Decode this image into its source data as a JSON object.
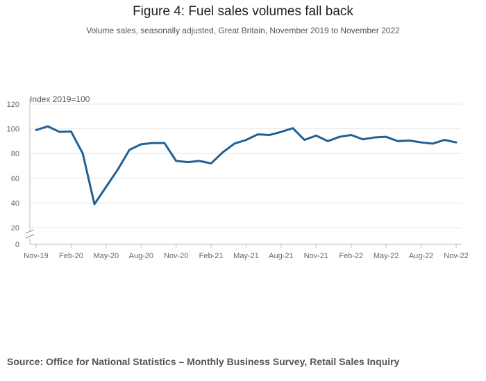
{
  "chart_data": {
    "type": "line",
    "title": "Figure 4: Fuel sales volumes fall back",
    "subtitle": "Volume sales, seasonally adjusted, Great Britain, November 2019 to November 2022",
    "ylabel": "Index 2019=100",
    "xlabel": "",
    "ylim": [
      0,
      120
    ],
    "y_ticks": [
      0,
      20,
      40,
      60,
      80,
      100,
      120
    ],
    "axis_break": true,
    "grid": true,
    "x_tick_labels": [
      "Nov-19",
      "Feb-20",
      "May-20",
      "Aug-20",
      "Nov-20",
      "Feb-21",
      "May-21",
      "Aug-21",
      "Nov-21",
      "Feb-22",
      "May-22",
      "Aug-22",
      "Nov-22"
    ],
    "x_tick_every": 3,
    "series": [
      {
        "name": "Fuel sales volume",
        "color": "#206095",
        "values": [
          99.0,
          102.0,
          97.5,
          97.8,
          80.0,
          39.0,
          53.0,
          67.0,
          83.0,
          87.5,
          88.5,
          88.5,
          74.0,
          73.0,
          74.0,
          72.0,
          81.0,
          88.0,
          91.0,
          95.5,
          95.0,
          97.5,
          100.5,
          91.0,
          94.5,
          90.0,
          93.5,
          95.0,
          91.5,
          93.0,
          93.5,
          90.0,
          90.5,
          89.0,
          88.0,
          91.0,
          89.0
        ]
      }
    ]
  },
  "source": "Source: Office for National Statistics – Monthly Business Survey, Retail Sales Inquiry"
}
